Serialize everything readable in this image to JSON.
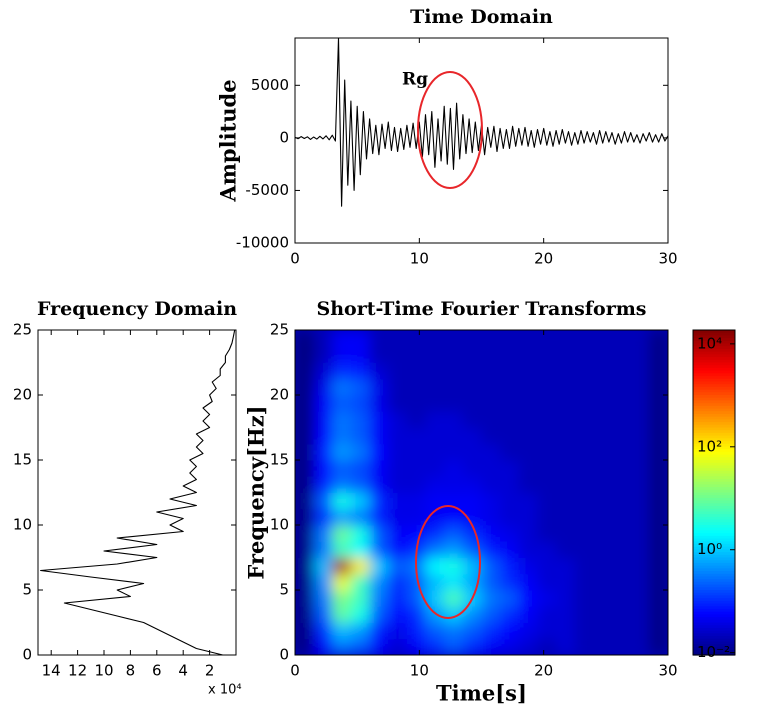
{
  "chart_data": [
    {
      "type": "line",
      "title": "Time Domain",
      "ylabel": "Amplitude",
      "annotation": "Rg",
      "color": "#000000",
      "xlim": [
        0,
        30
      ],
      "xticks": [
        0,
        10,
        20,
        30
      ],
      "ylim": [
        -10000,
        9500
      ],
      "yticks": [
        -10000,
        -5000,
        0,
        5000
      ],
      "x": [
        0,
        0.25,
        0.5,
        0.75,
        1,
        1.25,
        1.5,
        1.75,
        2,
        2.25,
        2.5,
        2.75,
        3,
        3.25,
        3.5,
        3.75,
        4,
        4.25,
        4.5,
        4.75,
        5,
        5.25,
        5.5,
        5.75,
        6,
        6.25,
        6.5,
        6.75,
        7,
        7.25,
        7.5,
        7.75,
        8,
        8.25,
        8.5,
        8.75,
        9,
        9.25,
        9.5,
        9.75,
        10,
        10.25,
        10.5,
        10.75,
        11,
        11.25,
        11.5,
        11.75,
        12,
        12.25,
        12.5,
        12.75,
        13,
        13.25,
        13.5,
        13.75,
        14,
        14.25,
        14.5,
        14.75,
        15,
        15.25,
        15.5,
        15.75,
        16,
        16.25,
        16.5,
        16.75,
        17,
        17.25,
        17.5,
        17.75,
        18,
        18.25,
        18.5,
        18.75,
        19,
        19.25,
        19.5,
        19.75,
        20,
        20.25,
        20.5,
        20.75,
        21,
        21.25,
        21.5,
        21.75,
        22,
        22.25,
        22.5,
        22.75,
        23,
        23.25,
        23.5,
        23.75,
        24,
        24.25,
        24.5,
        24.75,
        25,
        25.25,
        25.5,
        25.75,
        26,
        26.25,
        26.5,
        26.75,
        27,
        27.25,
        27.5,
        27.75,
        28,
        28.25,
        28.5,
        28.75,
        29,
        29.25,
        29.5,
        29.75,
        30
      ],
      "y": [
        50,
        -80,
        120,
        -60,
        100,
        -150,
        80,
        -120,
        150,
        -100,
        200,
        -180,
        250,
        -300,
        9500,
        -6500,
        5500,
        -4500,
        3500,
        -5000,
        3000,
        -3500,
        2500,
        -2000,
        1800,
        -1500,
        1200,
        -1600,
        1300,
        -1000,
        1500,
        -1200,
        1000,
        -1300,
        900,
        -1100,
        1200,
        -900,
        1400,
        -1000,
        1500,
        -1800,
        2200,
        -1600,
        2500,
        -2800,
        1800,
        -2200,
        3000,
        -2500,
        2800,
        -3000,
        3300,
        -2000,
        2200,
        -1500,
        1800,
        -1400,
        1500,
        -1200,
        1200,
        -1600,
        1000,
        -900,
        1100,
        -1300,
        900,
        -1000,
        800,
        -1000,
        1100,
        -800,
        900,
        -700,
        1000,
        -800,
        700,
        -900,
        800,
        -600,
        900,
        -700,
        600,
        -800,
        700,
        -600,
        800,
        -500,
        600,
        -700,
        500,
        -600,
        700,
        -500,
        600,
        -400,
        500,
        -600,
        700,
        -500,
        600,
        -400,
        500,
        -600,
        400,
        -500,
        600,
        -400,
        500,
        -400,
        300,
        -500,
        400,
        -300,
        500,
        -400,
        300,
        -400,
        400,
        -300,
        200
      ]
    },
    {
      "type": "line",
      "title": "Frequency Domain",
      "x_multiplier": "x 10⁴",
      "color": "#000000",
      "xlim": [
        15,
        0
      ],
      "xticks": [
        14,
        12,
        10,
        8,
        6,
        4,
        2
      ],
      "ylim": [
        0,
        25
      ],
      "yticks": [
        0,
        5,
        10,
        15,
        20,
        25
      ],
      "x": [
        1,
        3,
        4,
        5,
        6,
        7,
        9,
        11,
        13,
        8,
        9,
        7,
        11,
        14.8,
        9,
        6,
        10,
        6,
        9,
        4,
        5,
        4,
        6,
        3,
        5,
        3,
        4,
        3,
        3.5,
        3,
        3.5,
        2.5,
        3,
        2.5,
        3,
        2,
        2.5,
        2,
        2.5,
        1.8,
        2,
        1.5,
        1.8,
        1.2,
        1.2,
        0.8,
        0.8,
        0.5,
        0.3,
        0.2,
        0.1
      ],
      "y": [
        0,
        0.5,
        1,
        1.5,
        2,
        2.5,
        3,
        3.5,
        4,
        4.5,
        5,
        5.5,
        6,
        6.5,
        7,
        7.5,
        8,
        8.5,
        9,
        9.5,
        10,
        10.5,
        11,
        11.5,
        12,
        12.5,
        13,
        13.5,
        14,
        14.5,
        15,
        15.5,
        16,
        16.5,
        17,
        17.5,
        18,
        18.5,
        19,
        19.5,
        20,
        20.5,
        21,
        21.5,
        22,
        22.5,
        23,
        23.5,
        24,
        24.5,
        25
      ]
    },
    {
      "type": "heatmap",
      "title": "Short-Time Fourier Transforms",
      "xlabel": "Time[s]",
      "ylabel": "Frequency[Hz]",
      "xlim": [
        0,
        30
      ],
      "xticks": [
        0,
        10,
        20,
        30
      ],
      "ylim": [
        0,
        25
      ],
      "yticks": [
        0,
        5,
        10,
        15,
        20,
        25
      ],
      "colorbar": {
        "log": true,
        "clim": [
          0.009,
          18600
        ],
        "ticks": [
          {
            "value": 10000,
            "label": "10⁴"
          },
          {
            "value": 100,
            "label": "10²"
          },
          {
            "value": 1,
            "label": "10⁰"
          },
          {
            "value": 0.01,
            "label": "10⁻²"
          }
        ]
      },
      "x": [
        0.75,
        2.25,
        3.75,
        5.25,
        6.75,
        8.25,
        9.75,
        11.25,
        12.75,
        14.25,
        15.75,
        17.25,
        18.75,
        20.25,
        21.75,
        23.25,
        24.75,
        26.25,
        27.75,
        29.25
      ],
      "y": [
        0.625,
        1.875,
        3.125,
        4.375,
        5.625,
        6.875,
        8.125,
        9.375,
        10.625,
        11.875,
        13.125,
        14.375,
        15.625,
        16.875,
        18.125,
        19.375,
        20.625,
        21.875,
        23.125,
        24.375
      ],
      "z": [
        [
          0.005,
          0.05,
          0.3,
          0.2,
          0.05,
          0.03,
          0.05,
          0.1,
          0.2,
          0.1,
          0.05,
          0.04,
          0.03,
          0.02,
          0.03,
          0.02,
          0.02,
          0.02,
          0.02,
          0.01
        ],
        [
          0.005,
          0.1,
          0.8,
          0.5,
          0.08,
          0.04,
          0.08,
          0.2,
          0.3,
          0.2,
          0.1,
          0.06,
          0.04,
          0.03,
          0.03,
          0.02,
          0.02,
          0.02,
          0.02,
          0.01
        ],
        [
          0.005,
          0.2,
          8,
          3,
          0.2,
          0.06,
          0.1,
          0.5,
          1,
          0.4,
          0.2,
          0.1,
          0.05,
          0.03,
          0.03,
          0.02,
          0.02,
          0.02,
          0.02,
          0.01
        ],
        [
          0.005,
          0.3,
          12,
          5,
          0.3,
          0.08,
          0.2,
          1,
          6,
          1,
          0.3,
          0.2,
          0.06,
          0.04,
          0.03,
          0.02,
          0.02,
          0.02,
          0.02,
          0.01
        ],
        [
          0.005,
          0.4,
          60,
          5,
          0.4,
          0.1,
          0.2,
          0.8,
          1.5,
          0.6,
          0.2,
          0.1,
          0.05,
          0.03,
          0.03,
          0.02,
          0.02,
          0.02,
          0.02,
          0.01
        ],
        [
          0.005,
          0.8,
          10000,
          100,
          1,
          0.2,
          0.3,
          2,
          3,
          0.8,
          0.2,
          0.08,
          0.04,
          0.03,
          0.03,
          0.02,
          0.02,
          0.02,
          0.02,
          0.01
        ],
        [
          0.005,
          0.3,
          5,
          2,
          0.2,
          0.06,
          0.1,
          0.3,
          0.5,
          0.2,
          0.08,
          0.05,
          0.03,
          0.03,
          0.02,
          0.02,
          0.02,
          0.02,
          0.02,
          0.01
        ],
        [
          0.005,
          0.3,
          10,
          3,
          0.2,
          0.05,
          0.06,
          0.1,
          0.2,
          0.1,
          0.05,
          0.04,
          0.03,
          0.02,
          0.02,
          0.02,
          0.02,
          0.02,
          0.02,
          0.01
        ],
        [
          0.005,
          0.1,
          0.5,
          0.3,
          0.08,
          0.04,
          0.04,
          0.05,
          0.06,
          0.05,
          0.04,
          0.03,
          0.03,
          0.02,
          0.02,
          0.02,
          0.02,
          0.02,
          0.02,
          0.01
        ],
        [
          0.005,
          0.2,
          3,
          1,
          0.1,
          0.04,
          0.04,
          0.05,
          0.05,
          0.05,
          0.04,
          0.03,
          0.03,
          0.02,
          0.02,
          0.02,
          0.02,
          0.02,
          0.02,
          0.01
        ],
        [
          0.005,
          0.08,
          0.3,
          0.2,
          0.05,
          0.03,
          0.03,
          0.04,
          0.04,
          0.04,
          0.03,
          0.03,
          0.02,
          0.02,
          0.02,
          0.02,
          0.02,
          0.02,
          0.02,
          0.01
        ],
        [
          0.005,
          0.06,
          0.2,
          0.15,
          0.05,
          0.03,
          0.03,
          0.03,
          0.04,
          0.03,
          0.03,
          0.03,
          0.02,
          0.02,
          0.02,
          0.02,
          0.02,
          0.02,
          0.02,
          0.01
        ],
        [
          0.005,
          0.08,
          0.5,
          0.3,
          0.06,
          0.03,
          0.03,
          0.03,
          0.03,
          0.03,
          0.03,
          0.02,
          0.02,
          0.02,
          0.02,
          0.02,
          0.02,
          0.02,
          0.02,
          0.01
        ],
        [
          0.005,
          0.06,
          0.3,
          0.2,
          0.05,
          0.03,
          0.03,
          0.03,
          0.03,
          0.03,
          0.02,
          0.02,
          0.02,
          0.02,
          0.02,
          0.02,
          0.02,
          0.02,
          0.02,
          0.01
        ],
        [
          0.005,
          0.05,
          0.3,
          0.2,
          0.05,
          0.03,
          0.02,
          0.03,
          0.03,
          0.02,
          0.02,
          0.02,
          0.02,
          0.02,
          0.02,
          0.02,
          0.02,
          0.02,
          0.02,
          0.01
        ],
        [
          0.005,
          0.05,
          0.2,
          0.15,
          0.04,
          0.02,
          0.02,
          0.02,
          0.02,
          0.02,
          0.02,
          0.02,
          0.02,
          0.02,
          0.02,
          0.02,
          0.02,
          0.02,
          0.02,
          0.01
        ],
        [
          0.005,
          0.04,
          0.3,
          0.2,
          0.04,
          0.02,
          0.02,
          0.02,
          0.02,
          0.02,
          0.02,
          0.02,
          0.02,
          0.02,
          0.02,
          0.02,
          0.02,
          0.02,
          0.02,
          0.01
        ],
        [
          0.005,
          0.03,
          0.1,
          0.08,
          0.03,
          0.02,
          0.02,
          0.02,
          0.02,
          0.02,
          0.02,
          0.02,
          0.02,
          0.02,
          0.02,
          0.02,
          0.02,
          0.02,
          0.02,
          0.01
        ],
        [
          0.005,
          0.02,
          0.05,
          0.05,
          0.02,
          0.02,
          0.02,
          0.02,
          0.02,
          0.02,
          0.02,
          0.02,
          0.02,
          0.02,
          0.02,
          0.02,
          0.02,
          0.02,
          0.02,
          0.01
        ],
        [
          0.005,
          0.02,
          0.05,
          0.05,
          0.02,
          0.02,
          0.02,
          0.02,
          0.02,
          0.02,
          0.02,
          0.02,
          0.02,
          0.02,
          0.02,
          0.02,
          0.02,
          0.02,
          0.02,
          0.01
        ]
      ]
    }
  ]
}
